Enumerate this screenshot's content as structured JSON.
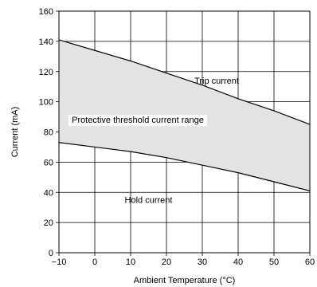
{
  "chart_data": {
    "type": "area",
    "title": "",
    "xlabel": "Ambient Temperature (°C)",
    "ylabel": "Current (mA)",
    "xlim": [
      -10,
      60
    ],
    "ylim": [
      0,
      160
    ],
    "xticks": [
      "−10",
      "0",
      "10",
      "20",
      "30",
      "40",
      "50",
      "60"
    ],
    "yticks": [
      "0",
      "20",
      "40",
      "60",
      "80",
      "100",
      "120",
      "140",
      "160"
    ],
    "grid": true,
    "fill_color": "#e3e3e3",
    "line_color": "#000000",
    "series": [
      {
        "x": [
          -10,
          0,
          10,
          20,
          30,
          40,
          50,
          60
        ],
        "values": [
          141,
          134,
          127,
          119,
          111,
          102,
          94,
          85
        ]
      },
      {
        "x": [
          -10,
          0,
          10,
          20,
          30,
          40,
          50,
          60
        ],
        "values": [
          73,
          70,
          67,
          63,
          58,
          53,
          47,
          41
        ]
      }
    ],
    "annotations": [
      {
        "text": "Trip current",
        "x": 34,
        "y": 112
      },
      {
        "text": "Protective threshold current range",
        "x": 12,
        "y": 86
      },
      {
        "text": "Hold current",
        "x": 15,
        "y": 33
      }
    ]
  }
}
